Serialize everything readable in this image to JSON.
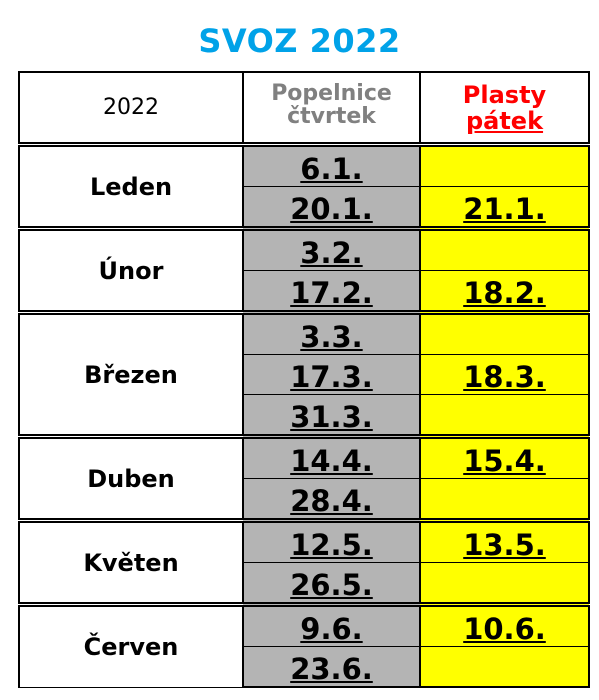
{
  "title": "SVOZ 2022",
  "header": {
    "year": "2022",
    "col_gray_line1": "Popelnice",
    "col_gray_line2": "čtvrtek",
    "col_red_line1": "Plasty",
    "col_red_line2": "pátek"
  },
  "months": [
    {
      "name": "Leden",
      "rows": [
        {
          "gray": "6.1.",
          "yellow": ""
        },
        {
          "gray": "20.1.",
          "yellow": "21.1."
        }
      ]
    },
    {
      "name": "Únor",
      "rows": [
        {
          "gray": "3.2.",
          "yellow": ""
        },
        {
          "gray": "17.2.",
          "yellow": "18.2."
        }
      ]
    },
    {
      "name": "Březen",
      "rows": [
        {
          "gray": "3.3.",
          "yellow": ""
        },
        {
          "gray": "17.3.",
          "yellow": "18.3."
        },
        {
          "gray": "31.3.",
          "yellow": ""
        }
      ]
    },
    {
      "name": "Duben",
      "rows": [
        {
          "gray": "14.4.",
          "yellow": "15.4."
        },
        {
          "gray": "28.4.",
          "yellow": ""
        }
      ]
    },
    {
      "name": "Květen",
      "rows": [
        {
          "gray": "12.5.",
          "yellow": "13.5."
        },
        {
          "gray": "26.5.",
          "yellow": ""
        }
      ]
    },
    {
      "name": "Červen",
      "rows": [
        {
          "gray": "9.6.",
          "yellow": "10.6."
        },
        {
          "gray": "23.6.",
          "yellow": ""
        }
      ]
    }
  ],
  "colors": {
    "title": "#00a2e8",
    "gray_fill": "#b4b4b4",
    "yellow_fill": "#ffff00",
    "header_gray_text": "#808080",
    "header_red_text": "#ff0000"
  }
}
